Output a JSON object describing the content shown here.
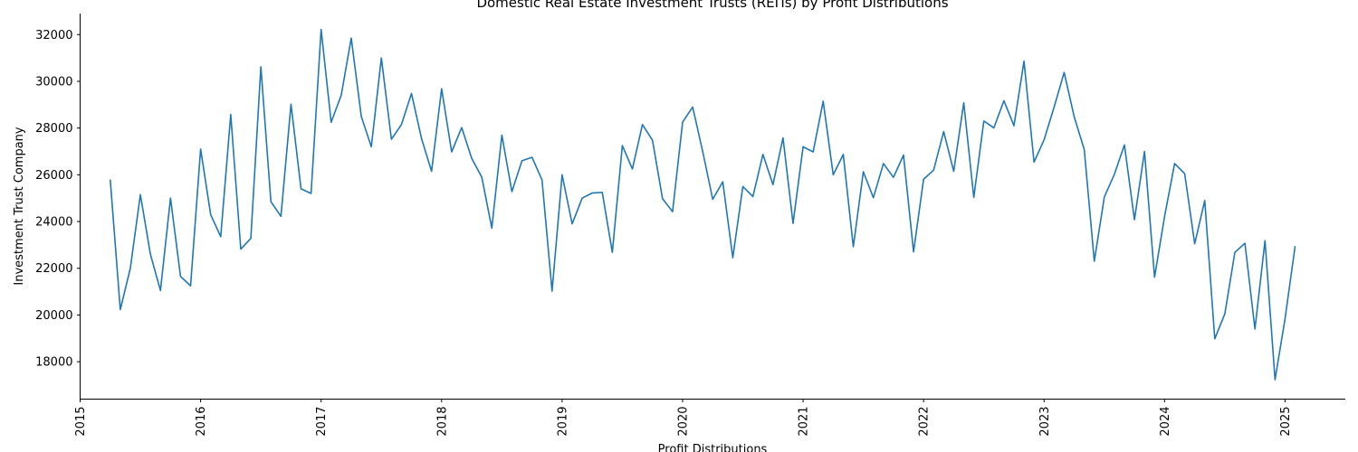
{
  "chart_data": {
    "type": "line",
    "title": "Domestic Real Estate Investment Trusts (REITs) by Profit Distributions",
    "xlabel": "Profit Distributions",
    "ylabel": "Investment Trust Company",
    "xlim": [
      "2015-01-01",
      "2025-07-01"
    ],
    "ylim": [
      16400,
      32900
    ],
    "x_ticks": [
      "2015",
      "2016",
      "2017",
      "2018",
      "2019",
      "2020",
      "2021",
      "2022",
      "2023",
      "2024",
      "2025"
    ],
    "y_ticks": [
      18000,
      20000,
      22000,
      24000,
      26000,
      28000,
      30000,
      32000
    ],
    "grid": false,
    "line_color": "#1f77b4",
    "series": [
      {
        "x": [
          "2015-04",
          "2015-05",
          "2015-06",
          "2015-07",
          "2015-08",
          "2015-09",
          "2015-10",
          "2015-11",
          "2015-12",
          "2016-01",
          "2016-02",
          "2016-03",
          "2016-04",
          "2016-05",
          "2016-06",
          "2016-07",
          "2016-08",
          "2016-09",
          "2016-10",
          "2016-11",
          "2016-12",
          "2017-01",
          "2017-02",
          "2017-03",
          "2017-04",
          "2017-05",
          "2017-06",
          "2017-07",
          "2017-08",
          "2017-09",
          "2017-10",
          "2017-11",
          "2017-12",
          "2018-01",
          "2018-02",
          "2018-03",
          "2018-04",
          "2018-05",
          "2018-06",
          "2018-07",
          "2018-08",
          "2018-09",
          "2018-10",
          "2018-11",
          "2018-12",
          "2019-01",
          "2019-02",
          "2019-03",
          "2019-04",
          "2019-05",
          "2019-06",
          "2019-07",
          "2019-08",
          "2019-09",
          "2019-10",
          "2019-11",
          "2019-12",
          "2020-01",
          "2020-02",
          "2020-03",
          "2020-04",
          "2020-05",
          "2020-06",
          "2020-07",
          "2020-08",
          "2020-09",
          "2020-10",
          "2020-11",
          "2020-12",
          "2021-01",
          "2021-02",
          "2021-03",
          "2021-04",
          "2021-05",
          "2021-06",
          "2021-07",
          "2021-08",
          "2021-09",
          "2021-10",
          "2021-11",
          "2021-12",
          "2022-01",
          "2022-02",
          "2022-03",
          "2022-04",
          "2022-05",
          "2022-06",
          "2022-07",
          "2022-08",
          "2022-09",
          "2022-10",
          "2022-11",
          "2022-12",
          "2023-01",
          "2023-02",
          "2023-03",
          "2023-04",
          "2023-05",
          "2023-06",
          "2023-07",
          "2023-08",
          "2023-09",
          "2023-10",
          "2023-11",
          "2023-12",
          "2024-01",
          "2024-02",
          "2024-03",
          "2024-04",
          "2024-05",
          "2024-06",
          "2024-07",
          "2024-08",
          "2024-09",
          "2024-10",
          "2024-11",
          "2024-12",
          "2025-01",
          "2025-02"
        ],
        "values": [
          25800,
          20230,
          22000,
          25150,
          22600,
          21050,
          25000,
          21650,
          21250,
          27100,
          24300,
          23350,
          28580,
          22820,
          23280,
          30620,
          24850,
          24220,
          29020,
          25400,
          25200,
          32220,
          28250,
          29400,
          31850,
          28500,
          27200,
          31000,
          27520,
          28150,
          29480,
          27550,
          26150,
          29680,
          26980,
          28020,
          26700,
          25900,
          23720,
          27700,
          25280,
          26600,
          26750,
          25780,
          21020,
          26000,
          23900,
          25000,
          25220,
          25250,
          22680,
          27250,
          26250,
          28150,
          27480,
          24980,
          24420,
          28250,
          28900,
          27000,
          24950,
          25700,
          22450,
          25500,
          25070,
          26870,
          25580,
          27580,
          23920,
          27200,
          26980,
          29150,
          26000,
          26870,
          22920,
          26130,
          25020,
          26480,
          25890,
          26840,
          22700,
          25810,
          26200,
          27850,
          26150,
          29080,
          25030,
          28300,
          28010,
          29170,
          28100,
          30860,
          26540,
          27500,
          28900,
          30380,
          28480,
          27080,
          22300,
          25050,
          26020,
          27280,
          24080,
          27000,
          21620,
          24220,
          26480,
          26050,
          23050,
          24900,
          18980,
          20050,
          22680,
          23070,
          19400,
          23180,
          17230,
          19850,
          22950
        ]
      }
    ]
  }
}
